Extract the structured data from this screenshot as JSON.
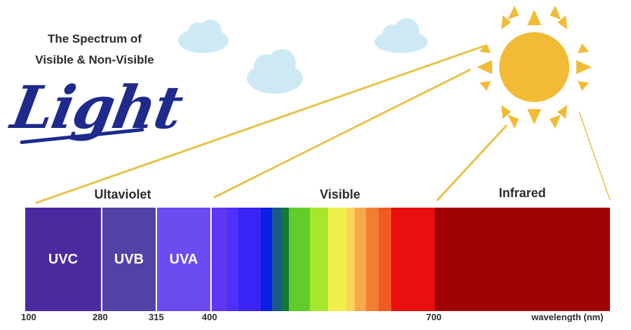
{
  "title": {
    "line1": "The Spectrum of",
    "line2": "Visible & Non-Visible",
    "brand": "Light"
  },
  "sections": {
    "ultraviolet": "Ultaviolet",
    "visible": "Visible",
    "infrared": "Infrared"
  },
  "uv_blocks": [
    {
      "label": "UVC",
      "color": "#4b2aa0"
    },
    {
      "label": "UVB",
      "color": "#5143a6"
    },
    {
      "label": "UVA",
      "color": "#6a4cf0"
    }
  ],
  "visible_colors": [
    "#5f37f2",
    "#5130ff",
    "#3a24f6",
    "#0d1fe6",
    "#1a5a8a",
    "#0f7a3a",
    "#61cc2a",
    "#a6e62c",
    "#f0f04a",
    "#fbd45a",
    "#f8a94a",
    "#f27e32",
    "#f25a24",
    "#e80f10"
  ],
  "infrared_color": "#a00303",
  "ticks": [
    "100",
    "280",
    "315",
    "400",
    "700"
  ],
  "axis_label": "wavelength (nm)",
  "colors": {
    "sun": "#f2bb36",
    "ray": "#e8c24a",
    "cloud": "#cdeaf4",
    "brand": "#1e2a8c"
  }
}
